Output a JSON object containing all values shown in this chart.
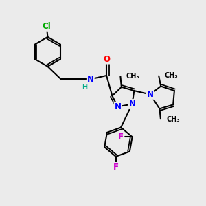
{
  "background_color": "#ebebeb",
  "atom_colors": {
    "C": "#000000",
    "N": "#0000ff",
    "O": "#ff0000",
    "F": "#cc00cc",
    "Cl": "#00aa00",
    "H": "#00aa88"
  },
  "bond_color": "#000000",
  "bond_width": 1.5,
  "font_size": 8.5,
  "figsize": [
    3.0,
    3.0
  ],
  "dpi": 100,
  "xlim": [
    0,
    10
  ],
  "ylim": [
    0,
    10
  ]
}
